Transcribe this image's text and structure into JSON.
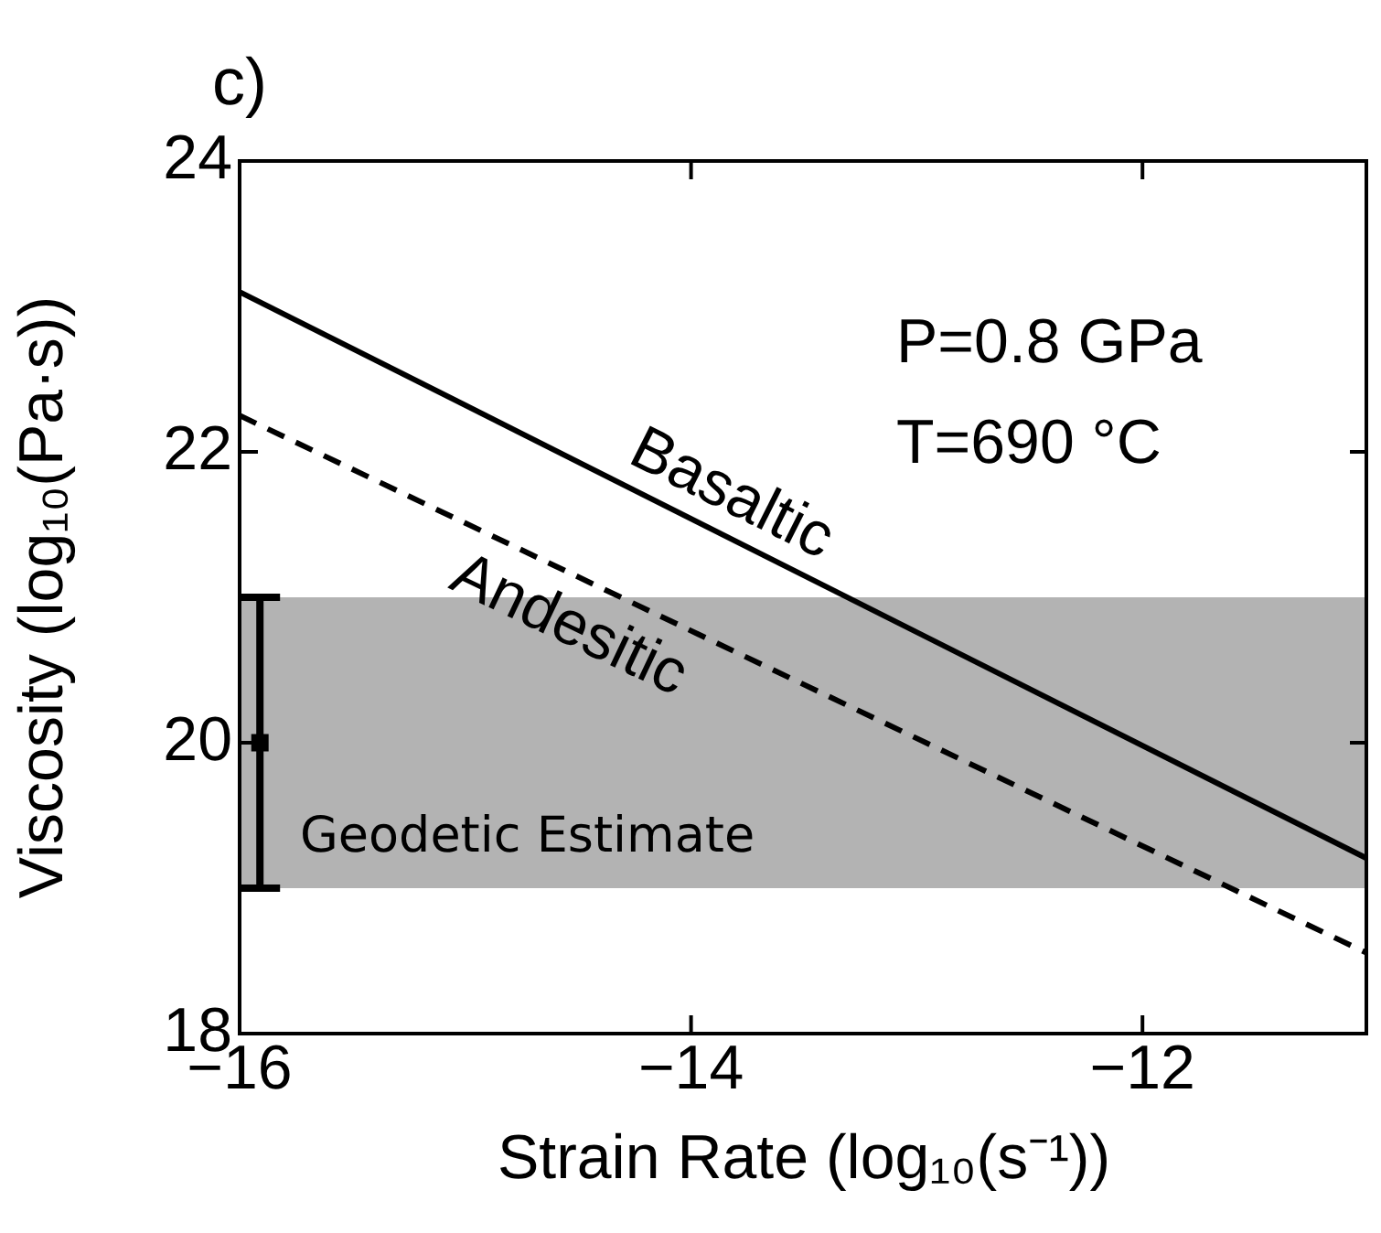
{
  "chart_data": {
    "type": "line",
    "title": "c)",
    "xlabel": "Strain Rate (log₁₀(s⁻¹))",
    "ylabel": "Viscosity (log₁₀(Pa·s))",
    "xlim": [
      -16,
      -11
    ],
    "xticks": [
      {
        "value": -16,
        "label": "−16"
      },
      {
        "value": -14,
        "label": "−14"
      },
      {
        "value": -12,
        "label": "−12"
      }
    ],
    "ylim": [
      18,
      24
    ],
    "yticks": [
      18,
      20,
      22,
      24
    ],
    "grid": false,
    "legend": false,
    "series": [
      {
        "name": "Basaltic",
        "color": "#000000",
        "x": [
          -16,
          -11
        ],
        "values": [
          23.1,
          19.2
        ],
        "line_style": "solid"
      },
      {
        "name": "Andesitic",
        "color": "#000000",
        "x": [
          -16,
          -11
        ],
        "values": [
          22.25,
          18.55
        ],
        "line_style": "dashed"
      },
      {
        "type": "scatter",
        "color": "#000000",
        "x": [
          -15.91
        ],
        "values": [
          20
        ],
        "errors": [
          1
        ],
        "marker": "square"
      }
    ],
    "bands": [
      {
        "axis": "y",
        "from": 19,
        "to": 21,
        "label": "Geodetic Estimate",
        "color": "#b3b3b3"
      }
    ],
    "annotations": [
      "P=0.8 GPa",
      "T=690 °C"
    ]
  }
}
